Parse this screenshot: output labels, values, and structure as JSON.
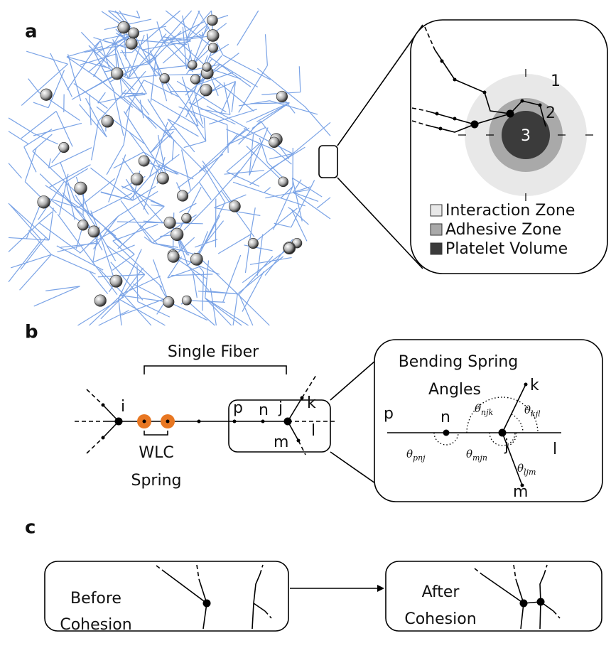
{
  "panels": {
    "a": {
      "label": "a",
      "zones": [
        "1",
        "2",
        "3"
      ],
      "legend": [
        "Interaction Zone",
        "Adhesive Zone",
        "Platelet Volume"
      ]
    },
    "b": {
      "label": "b",
      "fiber_label": "Single Fiber",
      "nodes": [
        "i",
        "p",
        "n",
        "j",
        "k",
        "l",
        "m"
      ],
      "spring_label": [
        "WLC",
        "Spring"
      ],
      "inset_title": [
        "Bending Spring",
        "Angles"
      ],
      "inset_nodes": [
        "p",
        "n",
        "j",
        "k",
        "l",
        "m"
      ],
      "theta": "θ",
      "angles": [
        "pnj",
        "mjn",
        "njk",
        "kjl",
        "ljm"
      ]
    },
    "c": {
      "label": "c",
      "before": [
        "Before",
        "Cohesion"
      ],
      "after": [
        "After",
        "Cohesion"
      ]
    }
  }
}
